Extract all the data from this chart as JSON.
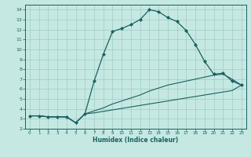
{
  "xlabel": "Humidex (Indice chaleur)",
  "ylabel": "",
  "xlim": [
    -0.5,
    23.5
  ],
  "ylim": [
    2,
    14.5
  ],
  "xticks": [
    0,
    1,
    2,
    3,
    4,
    5,
    6,
    7,
    8,
    9,
    10,
    11,
    12,
    13,
    14,
    15,
    16,
    17,
    18,
    19,
    20,
    21,
    22,
    23
  ],
  "yticks": [
    2,
    3,
    4,
    5,
    6,
    7,
    8,
    9,
    10,
    11,
    12,
    13,
    14
  ],
  "background_color": "#c5e8e2",
  "grid_color": "#9dccc4",
  "line_color": "#1a6060",
  "series": [
    {
      "x": [
        0,
        1,
        2,
        3,
        4,
        5,
        6,
        7,
        8,
        9,
        10,
        11,
        12,
        13,
        14,
        15,
        16,
        17,
        18,
        19,
        20,
        21,
        22,
        23
      ],
      "y": [
        3.3,
        3.3,
        3.2,
        3.2,
        3.2,
        2.6,
        3.5,
        6.8,
        9.5,
        11.8,
        12.1,
        12.5,
        13.0,
        14.0,
        13.8,
        13.2,
        12.8,
        11.9,
        10.5,
        8.8,
        7.5,
        7.6,
        6.8,
        6.4
      ],
      "marker": "D",
      "markersize": 2.0,
      "linewidth": 0.9
    },
    {
      "x": [
        0,
        1,
        2,
        3,
        4,
        5,
        6,
        7,
        8,
        9,
        10,
        11,
        12,
        13,
        14,
        15,
        16,
        17,
        18,
        19,
        20,
        21,
        22,
        23
      ],
      "y": [
        3.3,
        3.3,
        3.2,
        3.2,
        3.2,
        2.6,
        3.5,
        3.8,
        4.1,
        4.5,
        4.8,
        5.1,
        5.4,
        5.8,
        6.1,
        6.4,
        6.6,
        6.8,
        7.0,
        7.2,
        7.4,
        7.5,
        7.0,
        6.4
      ],
      "marker": null,
      "markersize": 0,
      "linewidth": 0.8
    },
    {
      "x": [
        0,
        1,
        2,
        3,
        4,
        5,
        6,
        7,
        8,
        9,
        10,
        11,
        12,
        13,
        14,
        15,
        16,
        17,
        18,
        19,
        20,
        21,
        22,
        23
      ],
      "y": [
        3.3,
        3.3,
        3.2,
        3.2,
        3.2,
        2.6,
        3.5,
        3.6,
        3.75,
        3.9,
        4.05,
        4.2,
        4.35,
        4.5,
        4.65,
        4.8,
        4.95,
        5.1,
        5.25,
        5.4,
        5.55,
        5.7,
        5.85,
        6.4
      ],
      "marker": null,
      "markersize": 0,
      "linewidth": 0.8
    }
  ]
}
